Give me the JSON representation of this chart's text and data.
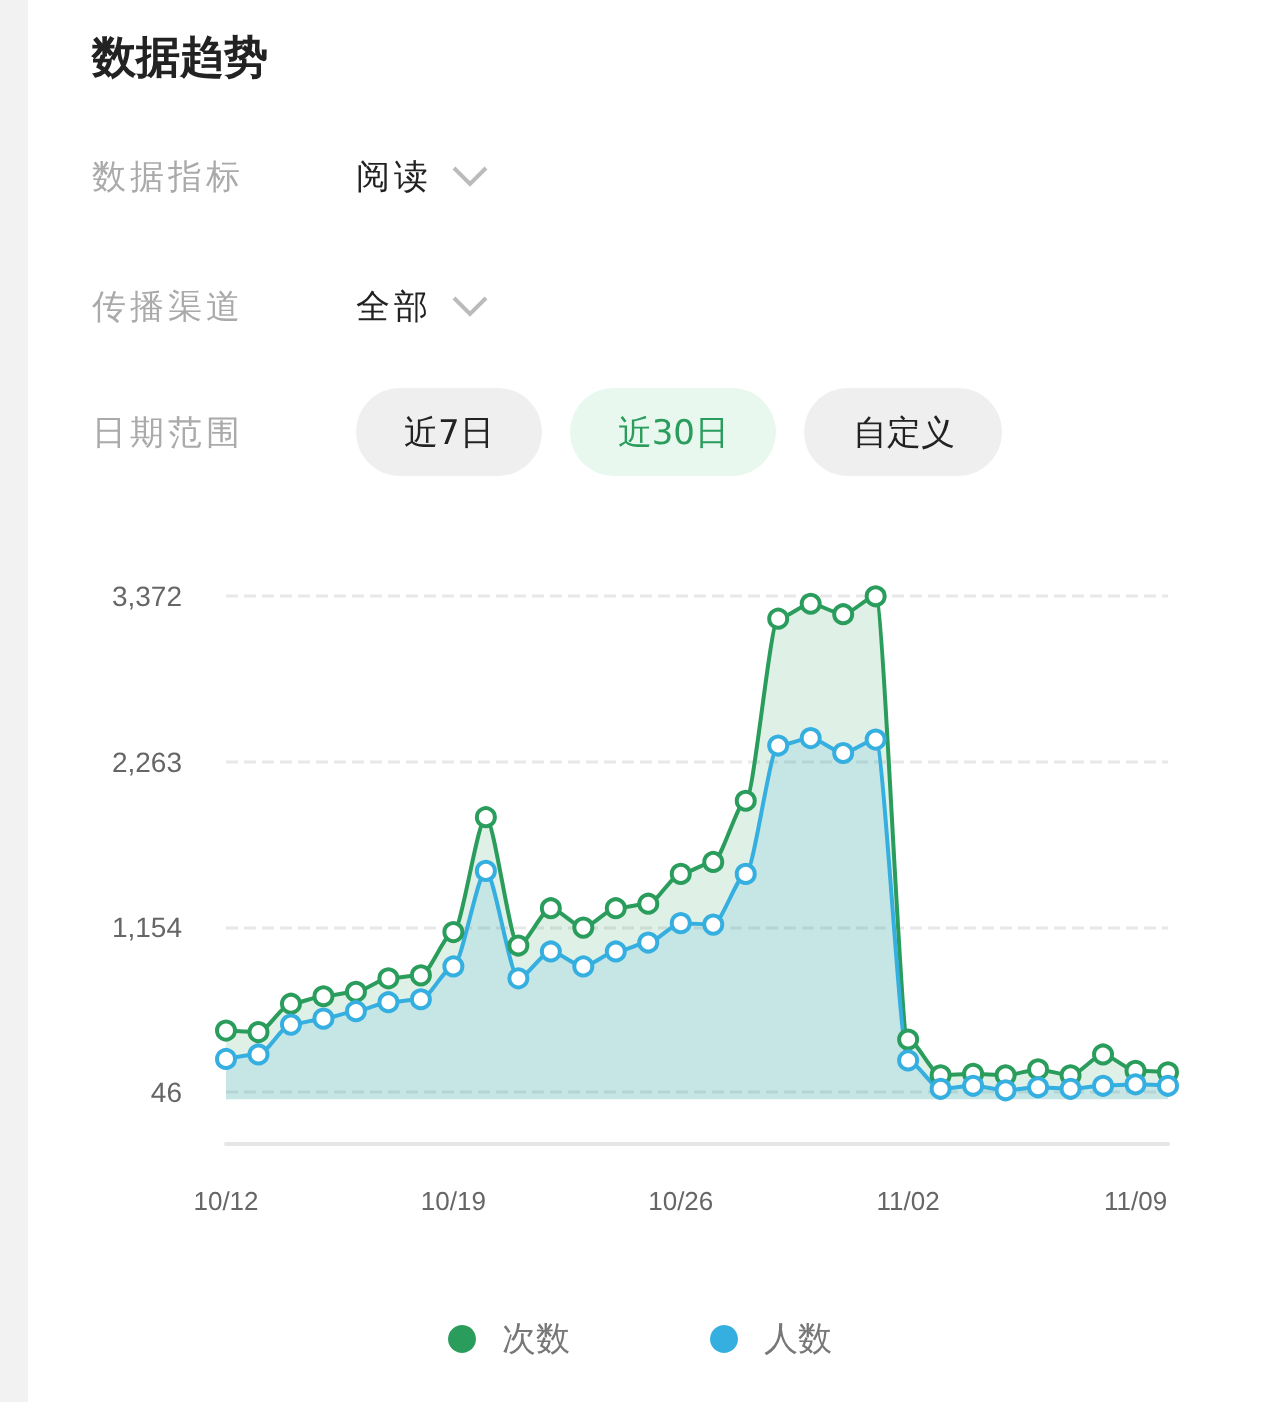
{
  "chart_data": {
    "type": "area",
    "title": "数据趋势",
    "annotations": [
      "数据指标",
      "阅读",
      "传播渠道",
      "全部",
      "日期范围",
      "近7日",
      "近30日",
      "自定义"
    ],
    "categories": [
      "10/12",
      null,
      null,
      null,
      null,
      null,
      null,
      "10/19",
      null,
      null,
      null,
      null,
      null,
      null,
      "10/26",
      null,
      null,
      null,
      null,
      null,
      null,
      "11/02",
      null,
      null,
      null,
      null,
      null,
      null,
      "11/09",
      null
    ],
    "series": [
      {
        "name": "次数",
        "color": "#2a9d5c",
        "values": [
          460,
          450,
          640,
          690,
          720,
          810,
          830,
          1120,
          1890,
          1030,
          1280,
          1150,
          1280,
          1310,
          1510,
          1590,
          2000,
          3220,
          3320,
          3250,
          3370,
          400,
          160,
          170,
          160,
          200,
          160,
          300,
          190,
          180
        ]
      },
      {
        "name": "人数",
        "color": "#35aee0",
        "values": [
          270,
          300,
          500,
          540,
          590,
          650,
          670,
          890,
          1530,
          810,
          990,
          890,
          990,
          1050,
          1180,
          1170,
          1510,
          2370,
          2420,
          2320,
          2410,
          260,
          70,
          90,
          60,
          80,
          70,
          90,
          100,
          90
        ]
      }
    ],
    "ylim": [
      -300,
      3372
    ],
    "yticks": [
      46,
      {
        "value": 1154,
        "label": "1,154"
      },
      {
        "value": 2263,
        "label": "2,263"
      },
      {
        "value": 3372,
        "label": "3,372"
      }
    ],
    "grid": "y",
    "legend": "bottom",
    "marker": "circle",
    "line_style": "solid"
  }
}
